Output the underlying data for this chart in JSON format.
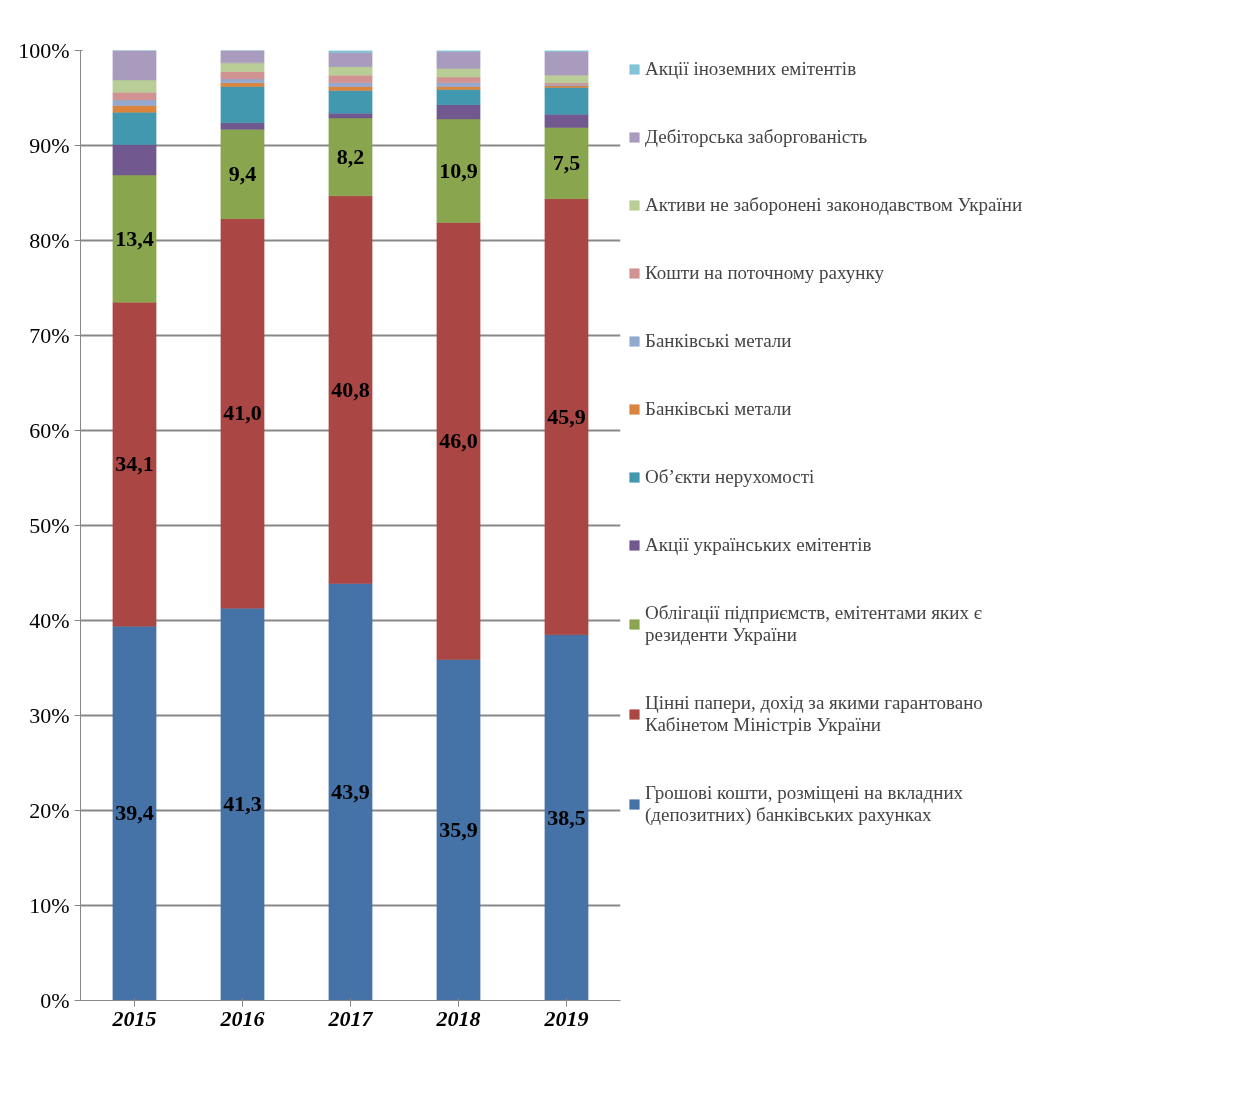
{
  "chart_data": {
    "type": "bar",
    "stacked": true,
    "categories": [
      "2015",
      "2016",
      "2017",
      "2018",
      "2019"
    ],
    "ylim": [
      0,
      100
    ],
    "yticks": [
      {
        "value": 0,
        "label": "0%"
      },
      {
        "value": 10,
        "label": "10%"
      },
      {
        "value": 20,
        "label": "20%"
      },
      {
        "value": 30,
        "label": "30%"
      },
      {
        "value": 40,
        "label": "40%"
      },
      {
        "value": 50,
        "label": "50%"
      },
      {
        "value": 60,
        "label": "60%"
      },
      {
        "value": 70,
        "label": "70%"
      },
      {
        "value": 80,
        "label": "80%"
      },
      {
        "value": 90,
        "label": "90%"
      },
      {
        "value": 100,
        "label": "100%"
      }
    ],
    "grid": "y",
    "legend": "right",
    "series": [
      {
        "name": "Грошові кошти, розміщені на вкладних (депозитних) банківських рахунках",
        "color": "#4572a7",
        "values": [
          39.4,
          41.3,
          43.9,
          35.9,
          38.5
        ],
        "value_labels": [
          "39,4",
          "41,3",
          "43,9",
          "35,9",
          "38,5"
        ]
      },
      {
        "name": "Цінні папери, дохід за якими гарантовано Кабінетом Міністрів України",
        "color": "#aa4643",
        "values": [
          34.1,
          41.0,
          40.8,
          46.0,
          45.9
        ],
        "value_labels": [
          "34,1",
          "41,0",
          "40,8",
          "46,0",
          "45,9"
        ]
      },
      {
        "name": "Облігації підприємств, емітентами яких є резиденти України",
        "color": "#89a54e",
        "values": [
          13.4,
          9.4,
          8.2,
          10.9,
          7.5
        ],
        "value_labels": [
          "13,4",
          "9,4",
          "8,2",
          "10,9",
          "7,5"
        ]
      },
      {
        "name": "Акції українських емітентів",
        "color": "#71588f",
        "values": [
          3.2,
          0.7,
          0.5,
          1.5,
          1.4
        ]
      },
      {
        "name": "Об’єкти нерухомості",
        "color": "#4198af",
        "values": [
          3.4,
          3.8,
          2.4,
          1.6,
          2.8
        ]
      },
      {
        "name": "Банківські метали",
        "color": "#db843d",
        "values": [
          0.7,
          0.4,
          0.4,
          0.3,
          0.2
        ]
      },
      {
        "name": "Банківські метали",
        "color": "#93a9cf",
        "values": [
          0.6,
          0.4,
          0.4,
          0.4,
          0.1
        ]
      },
      {
        "name": "Кошти на поточному рахунку",
        "color": "#d19392",
        "values": [
          0.8,
          0.8,
          0.8,
          0.6,
          0.2
        ]
      },
      {
        "name": "Активи не заборонені законодавством України",
        "color": "#b9cd96",
        "values": [
          1.3,
          0.9,
          0.9,
          0.9,
          0.8
        ]
      },
      {
        "name": "Дебіторська заборгованість",
        "color": "#a99bbd",
        "values": [
          3.1,
          1.3,
          1.5,
          1.8,
          2.5
        ]
      },
      {
        "name": "Акції іноземних емітентів",
        "color": "#7fc4d8",
        "values": [
          0,
          0,
          0.2,
          0.1,
          0.1
        ]
      }
    ]
  }
}
